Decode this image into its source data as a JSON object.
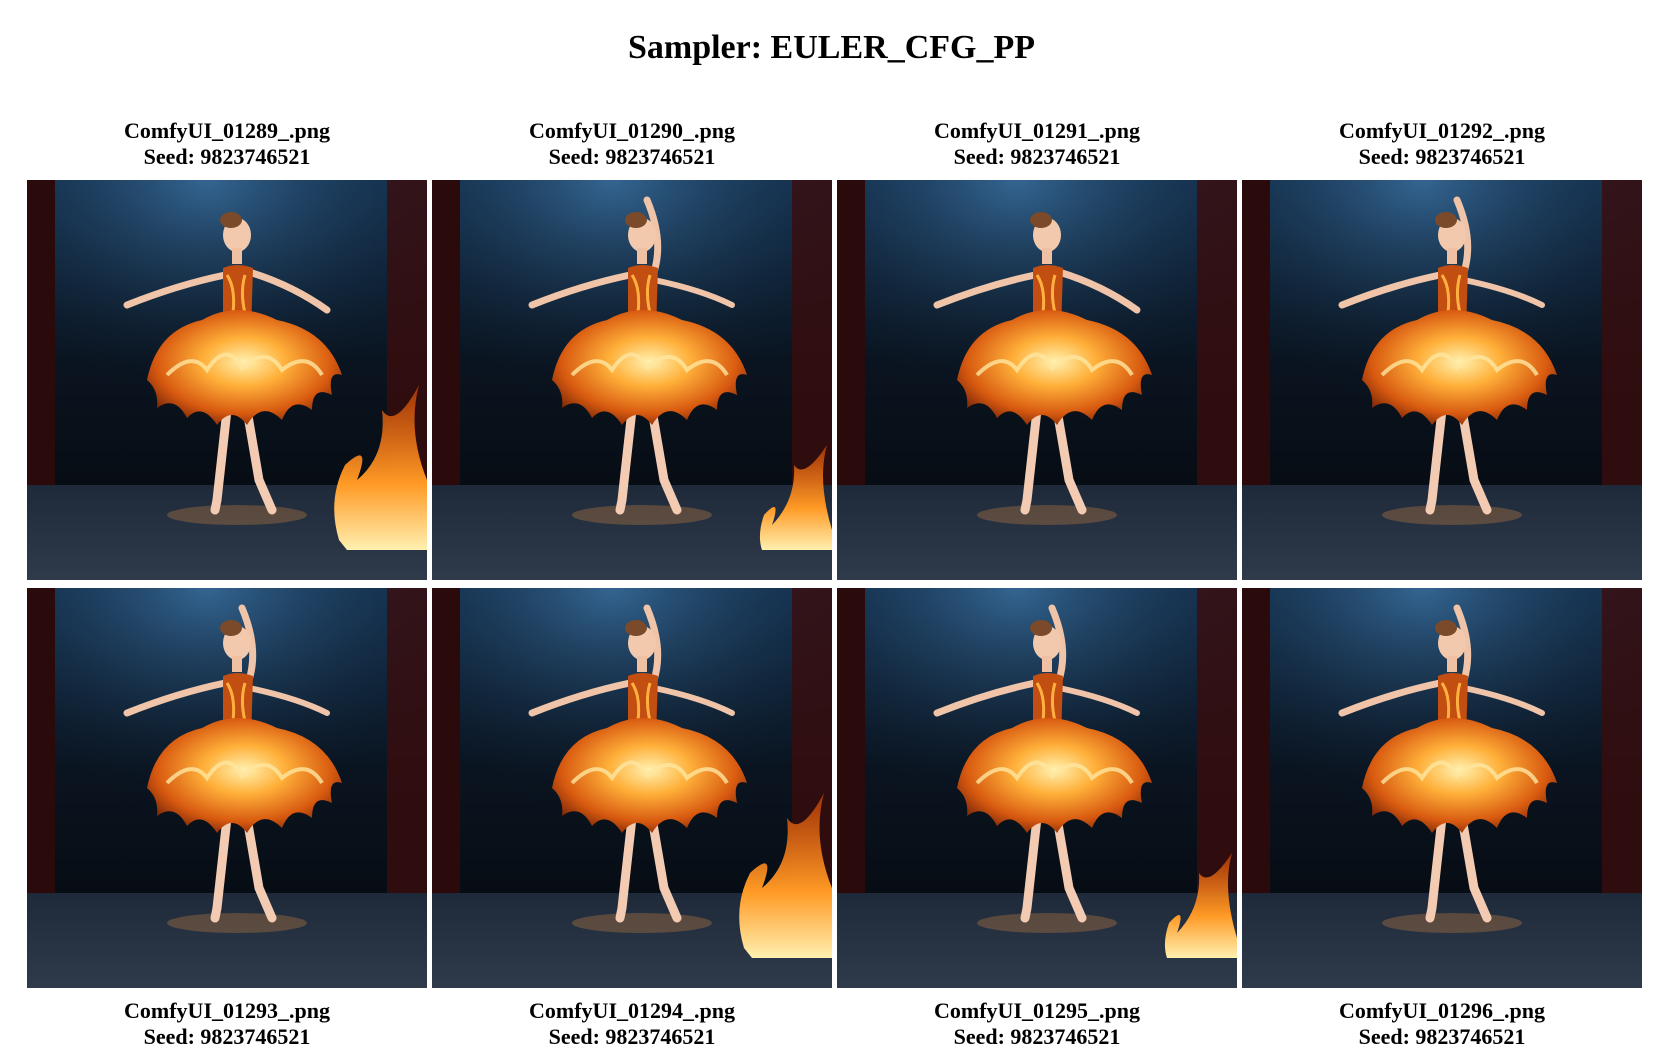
{
  "title": "Sampler: EULER_CFG_PP",
  "images": [
    {
      "filename": "ComfyUI_01289_.png",
      "seed_label": "Seed: 9823746521",
      "pose": "arms-out",
      "fire": "right",
      "caption_pos": "above"
    },
    {
      "filename": "ComfyUI_01290_.png",
      "seed_label": "Seed: 9823746521",
      "pose": "arm-up",
      "fire": "right-low",
      "caption_pos": "above"
    },
    {
      "filename": "ComfyUI_01291_.png",
      "seed_label": "Seed: 9823746521",
      "pose": "arms-out",
      "fire": "none",
      "caption_pos": "above"
    },
    {
      "filename": "ComfyUI_01292_.png",
      "seed_label": "Seed: 9823746521",
      "pose": "arm-up",
      "fire": "none",
      "caption_pos": "above"
    },
    {
      "filename": "ComfyUI_01293_.png",
      "seed_label": "Seed: 9823746521",
      "pose": "arm-up",
      "fire": "none",
      "caption_pos": "below"
    },
    {
      "filename": "ComfyUI_01294_.png",
      "seed_label": "Seed: 9823746521",
      "pose": "arm-up",
      "fire": "right",
      "caption_pos": "below"
    },
    {
      "filename": "ComfyUI_01295_.png",
      "seed_label": "Seed: 9823746521",
      "pose": "arm-up",
      "fire": "right-low",
      "caption_pos": "below"
    },
    {
      "filename": "ComfyUI_01296_.png",
      "seed_label": "Seed: 9823746521",
      "pose": "arm-up",
      "fire": "none",
      "caption_pos": "below"
    }
  ]
}
